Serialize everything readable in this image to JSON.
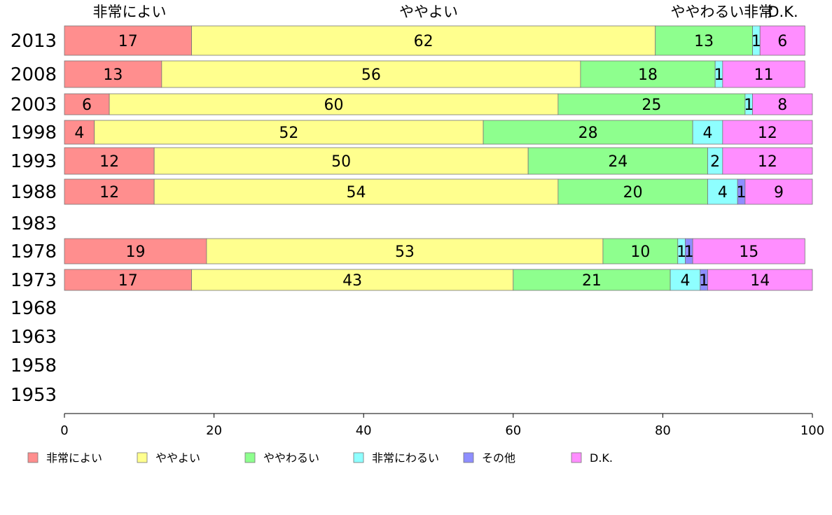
{
  "chart_data": {
    "type": "bar",
    "orientation": "horizontal",
    "stacked": true,
    "xlim": [
      0,
      100
    ],
    "x_ticks": [
      0,
      20,
      40,
      60,
      80,
      100
    ],
    "categories": [
      "2013",
      "2008",
      "2003",
      "1998",
      "1993",
      "1988",
      "1983",
      "1978",
      "1973",
      "1968",
      "1963",
      "1958",
      "1953"
    ],
    "series": [
      {
        "name": "非常によい",
        "color": "#ff8e8e",
        "values": [
          17,
          13,
          6,
          4,
          12,
          12,
          null,
          19,
          17,
          null,
          null,
          null,
          null
        ]
      },
      {
        "name": "ややよい",
        "color": "#ffff8e",
        "values": [
          62,
          56,
          60,
          52,
          50,
          54,
          null,
          53,
          43,
          null,
          null,
          null,
          null
        ]
      },
      {
        "name": "ややわるい",
        "color": "#8eff8e",
        "values": [
          13,
          18,
          25,
          28,
          24,
          20,
          null,
          10,
          21,
          null,
          null,
          null,
          null
        ]
      },
      {
        "name": "非常にわるい",
        "color": "#8effff",
        "values": [
          1,
          1,
          1,
          4,
          2,
          4,
          null,
          1,
          4,
          null,
          null,
          null,
          null
        ]
      },
      {
        "name": "その他",
        "color": "#8e8eff",
        "values": [
          0,
          0,
          0,
          0,
          0,
          1,
          null,
          1,
          1,
          null,
          null,
          null,
          null
        ]
      },
      {
        "name": "D.K.",
        "color": "#ff8eff",
        "values": [
          6,
          11,
          8,
          12,
          12,
          9,
          null,
          15,
          14,
          null,
          null,
          null,
          null
        ]
      }
    ],
    "top_labels": [
      "非常によい",
      "ややよい",
      "ややわるい",
      "非常",
      "D.K."
    ],
    "legend_position": "bottom",
    "grid": false
  }
}
